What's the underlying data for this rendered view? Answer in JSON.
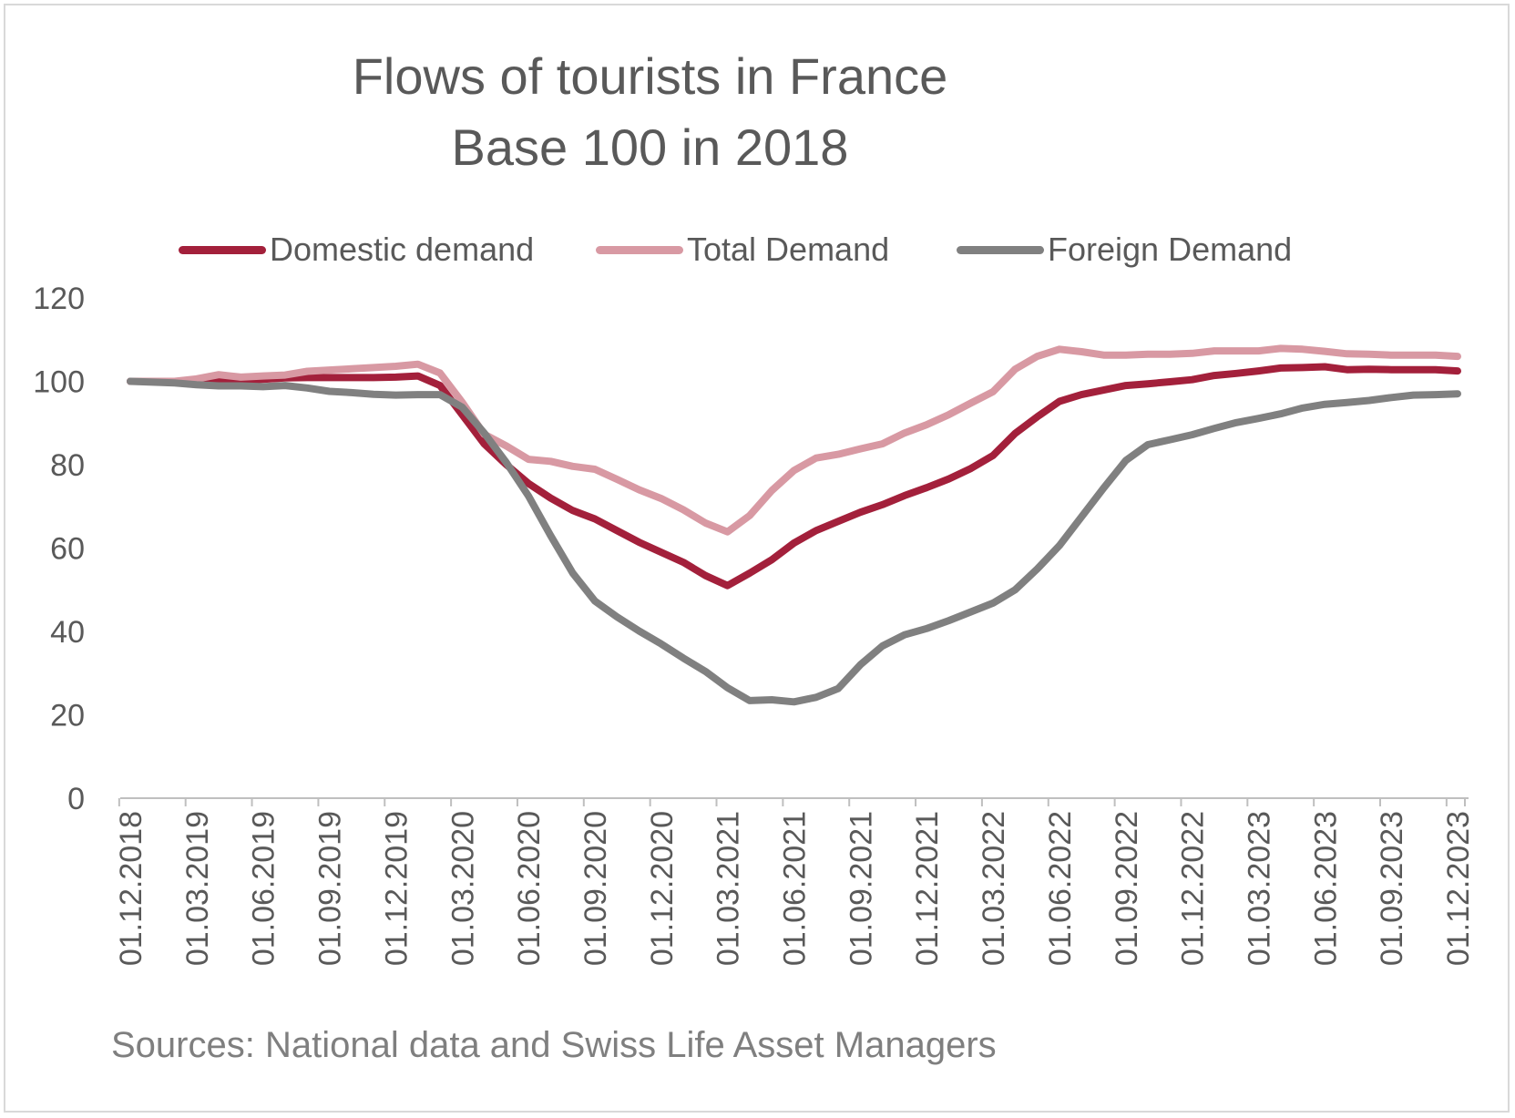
{
  "chart_data": {
    "type": "line",
    "title": "Flows of tourists in France",
    "subtitle": "Base 100 in 2018",
    "source": "Sources: National data and Swiss Life Asset Managers",
    "legend_position": "top",
    "grid": false,
    "ylim": [
      0,
      120
    ],
    "yticks": [
      0,
      20,
      40,
      60,
      80,
      100,
      120
    ],
    "xtick_labels": [
      "01.12.2018",
      "01.03.2019",
      "01.06.2019",
      "01.09.2019",
      "01.12.2019",
      "01.03.2020",
      "01.06.2020",
      "01.09.2020",
      "01.12.2020",
      "01.03.2021",
      "01.06.2021",
      "01.09.2021",
      "01.12.2021",
      "01.03.2022",
      "01.06.2022",
      "01.09.2022",
      "01.12.2022",
      "01.03.2023",
      "01.06.2023",
      "01.09.2023",
      "01.12.2023"
    ],
    "x": [
      "12.2018",
      "01.2019",
      "02.2019",
      "03.2019",
      "04.2019",
      "05.2019",
      "06.2019",
      "07.2019",
      "08.2019",
      "09.2019",
      "10.2019",
      "11.2019",
      "12.2019",
      "01.2020",
      "02.2020",
      "03.2020",
      "04.2020",
      "05.2020",
      "06.2020",
      "07.2020",
      "08.2020",
      "09.2020",
      "10.2020",
      "11.2020",
      "12.2020",
      "01.2021",
      "02.2021",
      "03.2021",
      "04.2021",
      "05.2021",
      "06.2021",
      "07.2021",
      "08.2021",
      "09.2021",
      "10.2021",
      "11.2021",
      "12.2021",
      "01.2022",
      "02.2022",
      "03.2022",
      "04.2022",
      "05.2022",
      "06.2022",
      "07.2022",
      "08.2022",
      "09.2022",
      "10.2022",
      "11.2022",
      "12.2022",
      "01.2023",
      "02.2023",
      "03.2023",
      "04.2023",
      "05.2023",
      "06.2023",
      "07.2023",
      "08.2023",
      "09.2023",
      "10.2023",
      "11.2023",
      "12.2023"
    ],
    "series": [
      {
        "name": "Domestic demand",
        "color": "#a3203b",
        "values": [
          100,
          100,
          99.9,
          100,
          100,
          100.2,
          100.5,
          100.8,
          100.9,
          100.9,
          100.9,
          100.9,
          101,
          101.3,
          99,
          92,
          85,
          80,
          75.5,
          72,
          69,
          67,
          64.2,
          61.4,
          59,
          56.6,
          53.4,
          51,
          54,
          57.2,
          61.2,
          64.2,
          66.4,
          68.6,
          70.4,
          72.6,
          74.5,
          76.6,
          79.1,
          82.2,
          87.5,
          91.5,
          95.2,
          96.8,
          97.9,
          99,
          99.4,
          99.9,
          100.4,
          101.4,
          101.9,
          102.5,
          103.2,
          103.3,
          103.5,
          102.8,
          102.9,
          102.8,
          102.8,
          102.8,
          102.5
        ]
      },
      {
        "name": "Total Demand",
        "color": "#d899a3",
        "values": [
          100,
          100,
          100,
          100.6,
          101.6,
          101,
          101.3,
          101.5,
          102.4,
          102.7,
          103,
          103.3,
          103.6,
          104.1,
          102,
          95,
          87.3,
          84.5,
          81.3,
          80.8,
          79.6,
          78.9,
          76.5,
          74,
          71.9,
          69.2,
          66,
          63.9,
          67.8,
          73.8,
          78.6,
          81.6,
          82.5,
          83.8,
          85,
          87.6,
          89.6,
          92,
          94.8,
          97.5,
          102.9,
          106,
          107.7,
          107.1,
          106.3,
          106.3,
          106.5,
          106.5,
          106.7,
          107.3,
          107.3,
          107.3,
          107.9,
          107.7,
          107.2,
          106.6,
          106.5,
          106.3,
          106.3,
          106.3,
          106
        ]
      },
      {
        "name": "Foreign Demand",
        "color": "#808080",
        "values": [
          100,
          99.8,
          99.6,
          99.2,
          98.9,
          98.9,
          98.7,
          99,
          98.4,
          97.6,
          97.3,
          96.9,
          96.7,
          96.8,
          96.8,
          93.8,
          87.6,
          80.5,
          72.5,
          63,
          54,
          47.3,
          43.5,
          40.1,
          37,
          33.6,
          30.4,
          26.5,
          23.4,
          23.6,
          23.1,
          24.2,
          26.3,
          32,
          36.5,
          39.2,
          40.7,
          42.6,
          44.7,
          46.8,
          50,
          55,
          60.6,
          67.5,
          74.4,
          81,
          84.8,
          86,
          87.2,
          88.7,
          90.1,
          91.1,
          92.2,
          93.6,
          94.5,
          94.9,
          95.4,
          96.1,
          96.7,
          96.8,
          97
        ]
      }
    ]
  }
}
